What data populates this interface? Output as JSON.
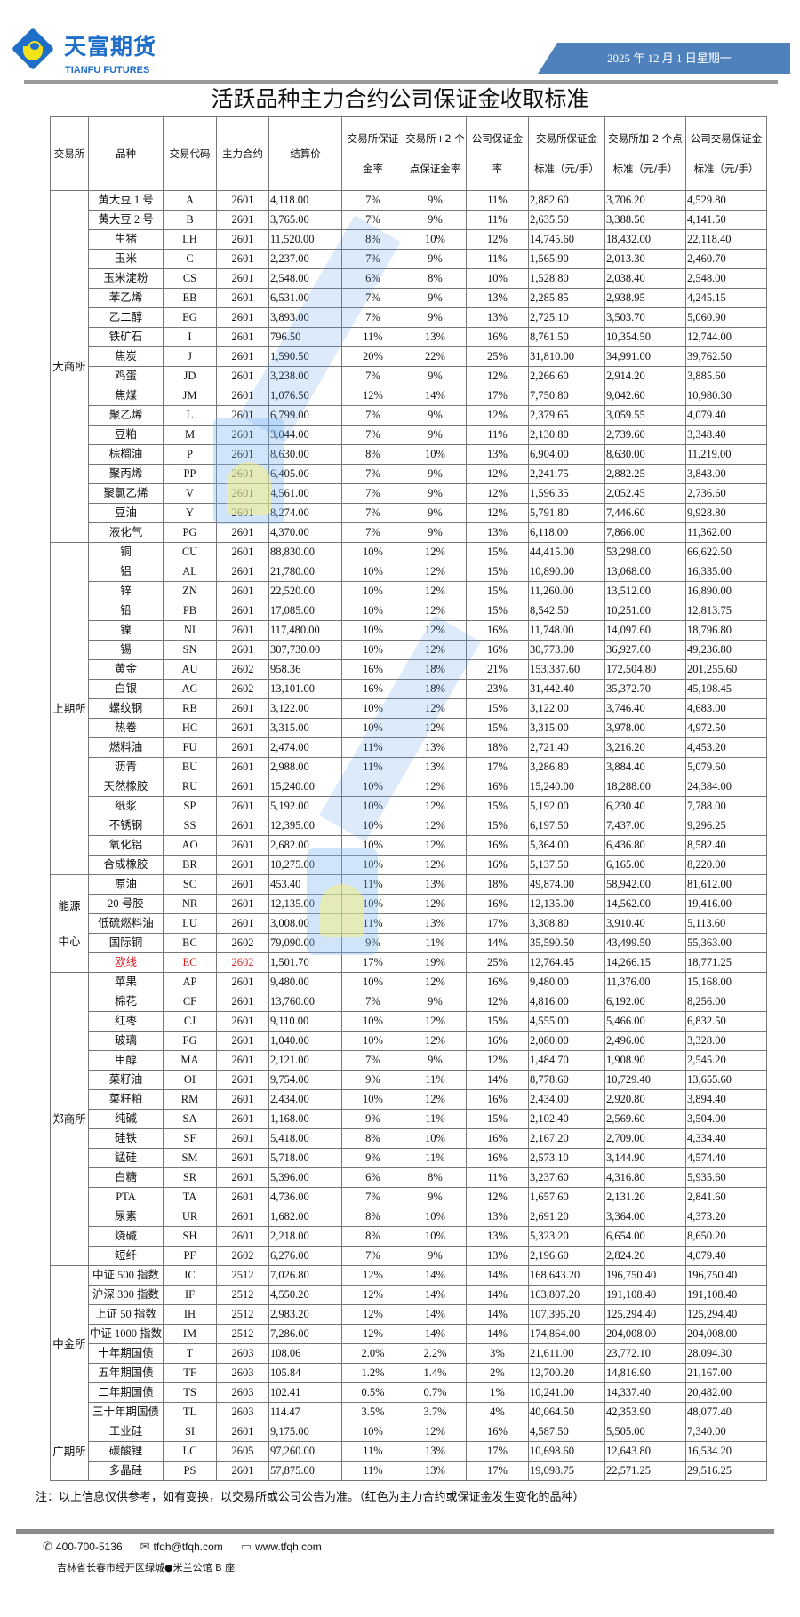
{
  "brand": {
    "name_cn": "天富期货",
    "name_en": "TIANFU FUTURES",
    "accent": "#1f6fc9",
    "logo_yellow": "#f3e31b"
  },
  "header": {
    "date": "2025 年 12 月 1 日星期一",
    "date_bar_color": "#4f81bd"
  },
  "title": "活跃品种主力合约公司保证金收取标准",
  "columns": [
    [
      "交易所",
      ""
    ],
    [
      "品种",
      ""
    ],
    [
      "交易代码",
      ""
    ],
    [
      "主力合约",
      ""
    ],
    [
      "结算价",
      ""
    ],
    [
      "交易所保证",
      "金率"
    ],
    [
      "交易所+2 个",
      "点保证金率"
    ],
    [
      "公司保证金",
      "率"
    ],
    [
      "交易所保证金",
      "标准（元/手）"
    ],
    [
      "交易所加 2 个点",
      "标准（元/手）"
    ],
    [
      "公司交易保证金",
      "标准（元/手）"
    ]
  ],
  "highlight_color": "#e02020",
  "exchanges": [
    {
      "name": "大商所",
      "rows": [
        [
          "黄大豆 1 号",
          "A",
          "2601",
          "4,118.00",
          "7%",
          "9%",
          "11%",
          "2,882.60",
          "3,706.20",
          "4,529.80"
        ],
        [
          "黄大豆 2 号",
          "B",
          "2601",
          "3,765.00",
          "7%",
          "9%",
          "11%",
          "2,635.50",
          "3,388.50",
          "4,141.50"
        ],
        [
          "生猪",
          "LH",
          "2601",
          "11,520.00",
          "8%",
          "10%",
          "12%",
          "14,745.60",
          "18,432.00",
          "22,118.40"
        ],
        [
          "玉米",
          "C",
          "2601",
          "2,237.00",
          "7%",
          "9%",
          "11%",
          "1,565.90",
          "2,013.30",
          "2,460.70"
        ],
        [
          "玉米淀粉",
          "CS",
          "2601",
          "2,548.00",
          "6%",
          "8%",
          "10%",
          "1,528.80",
          "2,038.40",
          "2,548.00"
        ],
        [
          "苯乙烯",
          "EB",
          "2601",
          "6,531.00",
          "7%",
          "9%",
          "13%",
          "2,285.85",
          "2,938.95",
          "4,245.15"
        ],
        [
          "乙二醇",
          "EG",
          "2601",
          "3,893.00",
          "7%",
          "9%",
          "13%",
          "2,725.10",
          "3,503.70",
          "5,060.90"
        ],
        [
          "铁矿石",
          "I",
          "2601",
          "796.50",
          "11%",
          "13%",
          "16%",
          "8,761.50",
          "10,354.50",
          "12,744.00"
        ],
        [
          "焦炭",
          "J",
          "2601",
          "1,590.50",
          "20%",
          "22%",
          "25%",
          "31,810.00",
          "34,991.00",
          "39,762.50"
        ],
        [
          "鸡蛋",
          "JD",
          "2601",
          "3,238.00",
          "7%",
          "9%",
          "12%",
          "2,266.60",
          "2,914.20",
          "3,885.60"
        ],
        [
          "焦煤",
          "JM",
          "2601",
          "1,076.50",
          "12%",
          "14%",
          "17%",
          "7,750.80",
          "9,042.60",
          "10,980.30"
        ],
        [
          "聚乙烯",
          "L",
          "2601",
          "6,799.00",
          "7%",
          "9%",
          "12%",
          "2,379.65",
          "3,059.55",
          "4,079.40"
        ],
        [
          "豆粕",
          "M",
          "2601",
          "3,044.00",
          "7%",
          "9%",
          "11%",
          "2,130.80",
          "2,739.60",
          "3,348.40"
        ],
        [
          "棕榈油",
          "P",
          "2601",
          "8,630.00",
          "8%",
          "10%",
          "13%",
          "6,904.00",
          "8,630.00",
          "11,219.00"
        ],
        [
          "聚丙烯",
          "PP",
          "2601",
          "6,405.00",
          "7%",
          "9%",
          "12%",
          "2,241.75",
          "2,882.25",
          "3,843.00"
        ],
        [
          "聚氯乙烯",
          "V",
          "2601",
          "4,561.00",
          "7%",
          "9%",
          "12%",
          "1,596.35",
          "2,052.45",
          "2,736.60"
        ],
        [
          "豆油",
          "Y",
          "2601",
          "8,274.00",
          "7%",
          "9%",
          "12%",
          "5,791.80",
          "7,446.60",
          "9,928.80"
        ],
        [
          "液化气",
          "PG",
          "2601",
          "4,370.00",
          "7%",
          "9%",
          "13%",
          "6,118.00",
          "7,866.00",
          "11,362.00"
        ]
      ]
    },
    {
      "name": "上期所",
      "rows": [
        [
          "铜",
          "CU",
          "2601",
          "88,830.00",
          "10%",
          "12%",
          "15%",
          "44,415.00",
          "53,298.00",
          "66,622.50"
        ],
        [
          "铝",
          "AL",
          "2601",
          "21,780.00",
          "10%",
          "12%",
          "15%",
          "10,890.00",
          "13,068.00",
          "16,335.00"
        ],
        [
          "锌",
          "ZN",
          "2601",
          "22,520.00",
          "10%",
          "12%",
          "15%",
          "11,260.00",
          "13,512.00",
          "16,890.00"
        ],
        [
          "铅",
          "PB",
          "2601",
          "17,085.00",
          "10%",
          "12%",
          "15%",
          "8,542.50",
          "10,251.00",
          "12,813.75"
        ],
        [
          "镍",
          "NI",
          "2601",
          "117,480.00",
          "10%",
          "12%",
          "16%",
          "11,748.00",
          "14,097.60",
          "18,796.80"
        ],
        [
          "锡",
          "SN",
          "2601",
          "307,730.00",
          "10%",
          "12%",
          "16%",
          "30,773.00",
          "36,927.60",
          "49,236.80"
        ],
        [
          "黄金",
          "AU",
          "2602",
          "958.36",
          "16%",
          "18%",
          "21%",
          "153,337.60",
          "172,504.80",
          "201,255.60"
        ],
        [
          "白银",
          "AG",
          "2602",
          "13,101.00",
          "16%",
          "18%",
          "23%",
          "31,442.40",
          "35,372.70",
          "45,198.45"
        ],
        [
          "螺纹钢",
          "RB",
          "2601",
          "3,122.00",
          "10%",
          "12%",
          "15%",
          "3,122.00",
          "3,746.40",
          "4,683.00"
        ],
        [
          "热卷",
          "HC",
          "2601",
          "3,315.00",
          "10%",
          "12%",
          "15%",
          "3,315.00",
          "3,978.00",
          "4,972.50"
        ],
        [
          "燃料油",
          "FU",
          "2601",
          "2,474.00",
          "11%",
          "13%",
          "18%",
          "2,721.40",
          "3,216.20",
          "4,453.20"
        ],
        [
          "沥青",
          "BU",
          "2601",
          "2,988.00",
          "11%",
          "13%",
          "17%",
          "3,286.80",
          "3,884.40",
          "5,079.60"
        ],
        [
          "天然橡胶",
          "RU",
          "2601",
          "15,240.00",
          "10%",
          "12%",
          "16%",
          "15,240.00",
          "18,288.00",
          "24,384.00"
        ],
        [
          "纸浆",
          "SP",
          "2601",
          "5,192.00",
          "10%",
          "12%",
          "15%",
          "5,192.00",
          "6,230.40",
          "7,788.00"
        ],
        [
          "不锈钢",
          "SS",
          "2601",
          "12,395.00",
          "10%",
          "12%",
          "15%",
          "6,197.50",
          "7,437.00",
          "9,296.25"
        ],
        [
          "氧化铝",
          "AO",
          "2601",
          "2,682.00",
          "10%",
          "12%",
          "16%",
          "5,364.00",
          "6,436.80",
          "8,582.40"
        ],
        [
          "合成橡胶",
          "BR",
          "2601",
          "10,275.00",
          "10%",
          "12%",
          "16%",
          "5,137.50",
          "6,165.00",
          "8,220.00"
        ]
      ]
    },
    {
      "name": "能源中心",
      "rows": [
        [
          "原油",
          "SC",
          "2601",
          "453.40",
          "11%",
          "13%",
          "18%",
          "49,874.00",
          "58,942.00",
          "81,612.00"
        ],
        [
          "20 号胶",
          "NR",
          "2601",
          "12,135.00",
          "10%",
          "12%",
          "16%",
          "12,135.00",
          "14,562.00",
          "19,416.00"
        ],
        [
          "低硫燃料油",
          "LU",
          "2601",
          "3,008.00",
          "11%",
          "13%",
          "17%",
          "3,308.80",
          "3,910.40",
          "5,113.60"
        ],
        [
          "国际铜",
          "BC",
          "2602",
          "79,090.00",
          "9%",
          "11%",
          "14%",
          "35,590.50",
          "43,499.50",
          "55,363.00"
        ],
        [
          "欧线",
          "EC",
          "2602",
          "1,501.70",
          "17%",
          "19%",
          "25%",
          "12,764.45",
          "14,266.15",
          "18,771.25",
          "highlight"
        ]
      ]
    },
    {
      "name": "郑商所",
      "rows": [
        [
          "苹果",
          "AP",
          "2601",
          "9,480.00",
          "10%",
          "12%",
          "16%",
          "9,480.00",
          "11,376.00",
          "15,168.00"
        ],
        [
          "棉花",
          "CF",
          "2601",
          "13,760.00",
          "7%",
          "9%",
          "12%",
          "4,816.00",
          "6,192.00",
          "8,256.00"
        ],
        [
          "红枣",
          "CJ",
          "2601",
          "9,110.00",
          "10%",
          "12%",
          "15%",
          "4,555.00",
          "5,466.00",
          "6,832.50"
        ],
        [
          "玻璃",
          "FG",
          "2601",
          "1,040.00",
          "10%",
          "12%",
          "16%",
          "2,080.00",
          "2,496.00",
          "3,328.00"
        ],
        [
          "甲醇",
          "MA",
          "2601",
          "2,121.00",
          "7%",
          "9%",
          "12%",
          "1,484.70",
          "1,908.90",
          "2,545.20"
        ],
        [
          "菜籽油",
          "OI",
          "2601",
          "9,754.00",
          "9%",
          "11%",
          "14%",
          "8,778.60",
          "10,729.40",
          "13,655.60"
        ],
        [
          "菜籽粕",
          "RM",
          "2601",
          "2,434.00",
          "10%",
          "12%",
          "16%",
          "2,434.00",
          "2,920.80",
          "3,894.40"
        ],
        [
          "纯碱",
          "SA",
          "2601",
          "1,168.00",
          "9%",
          "11%",
          "15%",
          "2,102.40",
          "2,569.60",
          "3,504.00"
        ],
        [
          "硅铁",
          "SF",
          "2601",
          "5,418.00",
          "8%",
          "10%",
          "16%",
          "2,167.20",
          "2,709.00",
          "4,334.40"
        ],
        [
          "锰硅",
          "SM",
          "2601",
          "5,718.00",
          "9%",
          "11%",
          "16%",
          "2,573.10",
          "3,144.90",
          "4,574.40"
        ],
        [
          "白糖",
          "SR",
          "2601",
          "5,396.00",
          "6%",
          "8%",
          "11%",
          "3,237.60",
          "4,316.80",
          "5,935.60"
        ],
        [
          "PTA",
          "TA",
          "2601",
          "4,736.00",
          "7%",
          "9%",
          "12%",
          "1,657.60",
          "2,131.20",
          "2,841.60"
        ],
        [
          "尿素",
          "UR",
          "2601",
          "1,682.00",
          "8%",
          "10%",
          "13%",
          "2,691.20",
          "3,364.00",
          "4,373.20"
        ],
        [
          "烧碱",
          "SH",
          "2601",
          "2,218.00",
          "8%",
          "10%",
          "13%",
          "5,323.20",
          "6,654.00",
          "8,650.20"
        ],
        [
          "短纤",
          "PF",
          "2602",
          "6,276.00",
          "7%",
          "9%",
          "13%",
          "2,196.60",
          "2,824.20",
          "4,079.40"
        ]
      ]
    },
    {
      "name": "中金所",
      "rows": [
        [
          "中证 500 指数",
          "IC",
          "2512",
          "7,026.80",
          "12%",
          "14%",
          "14%",
          "168,643.20",
          "196,750.40",
          "196,750.40"
        ],
        [
          "沪深 300 指数",
          "IF",
          "2512",
          "4,550.20",
          "12%",
          "14%",
          "14%",
          "163,807.20",
          "191,108.40",
          "191,108.40"
        ],
        [
          "上证 50 指数",
          "IH",
          "2512",
          "2,983.20",
          "12%",
          "14%",
          "14%",
          "107,395.20",
          "125,294.40",
          "125,294.40"
        ],
        [
          "中证 1000 指数",
          "IM",
          "2512",
          "7,286.00",
          "12%",
          "14%",
          "14%",
          "174,864.00",
          "204,008.00",
          "204,008.00"
        ],
        [
          "十年期国债",
          "T",
          "2603",
          "108.06",
          "2.0%",
          "2.2%",
          "3%",
          "21,611.00",
          "23,772.10",
          "28,094.30"
        ],
        [
          "五年期国债",
          "TF",
          "2603",
          "105.84",
          "1.2%",
          "1.4%",
          "2%",
          "12,700.20",
          "14,816.90",
          "21,167.00"
        ],
        [
          "二年期国债",
          "TS",
          "2603",
          "102.41",
          "0.5%",
          "0.7%",
          "1%",
          "10,241.00",
          "14,337.40",
          "20,482.00"
        ],
        [
          "三十年期国债",
          "TL",
          "2603",
          "114.47",
          "3.5%",
          "3.7%",
          "4%",
          "40,064.50",
          "42,353.90",
          "48,077.40"
        ]
      ]
    },
    {
      "name": "广期所",
      "rows": [
        [
          "工业硅",
          "SI",
          "2601",
          "9,175.00",
          "10%",
          "12%",
          "16%",
          "4,587.50",
          "5,505.00",
          "7,340.00"
        ],
        [
          "碳酸锂",
          "LC",
          "2605",
          "97,260.00",
          "11%",
          "13%",
          "17%",
          "10,698.60",
          "12,643.80",
          "16,534.20"
        ],
        [
          "多晶硅",
          "PS",
          "2601",
          "57,875.00",
          "11%",
          "13%",
          "17%",
          "19,098.75",
          "22,571.25",
          "29,516.25"
        ]
      ]
    }
  ],
  "note": "注：以上信息仅供参考，如有变换，以交易所或公司公告为准。（红色为主力合约或保证金发生变化的品种）",
  "footer": {
    "phone": "400-700-5136",
    "email": "tfqh@tfqh.com",
    "website": "www.tfqh.com",
    "address": "吉林省长春市经开区绿城●米兰公馆 B 座"
  }
}
